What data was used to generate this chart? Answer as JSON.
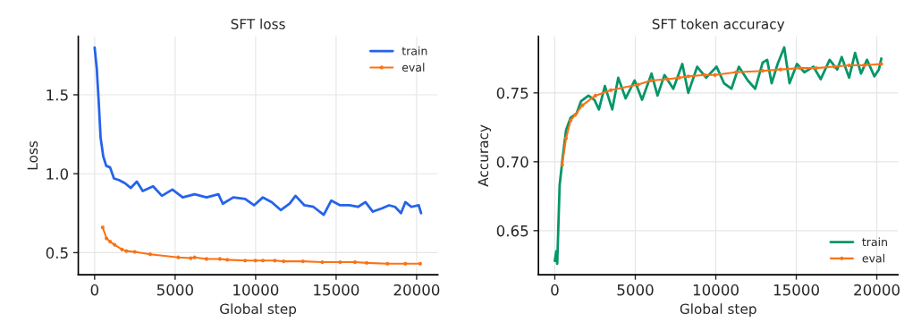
{
  "chart_data": [
    {
      "type": "line",
      "title": "SFT loss",
      "xlabel": "Global step",
      "ylabel": "Loss",
      "xlim": [
        -1015,
        21315
      ],
      "ylim": [
        0.36,
        1.87
      ],
      "xticks": [
        0,
        5000,
        10000,
        15000,
        20000
      ],
      "yticks": [
        {
          "value": 0.5,
          "label": "0.5"
        },
        {
          "value": 1.0,
          "label": "1.0"
        },
        {
          "value": 1.5,
          "label": "1.5"
        }
      ],
      "grid": true,
      "legend": "top right",
      "series": [
        {
          "name": "train",
          "color": "#2563eb",
          "marker": "none",
          "x": [
            0,
            130,
            258,
            370,
            535,
            720,
            960,
            1200,
            1510,
            1880,
            2250,
            2620,
            2990,
            3630,
            4180,
            4830,
            5470,
            6210,
            6950,
            7690,
            7960,
            8610,
            9350,
            9900,
            10450,
            11000,
            11560,
            12110,
            12480,
            13030,
            13590,
            14230,
            14700,
            15250,
            15810,
            16360,
            16820,
            17280,
            17830,
            18290,
            18660,
            19030,
            19300,
            19670,
            20130,
            20280
          ],
          "values": [
            1.8,
            1.67,
            1.45,
            1.23,
            1.11,
            1.05,
            1.04,
            0.97,
            0.96,
            0.94,
            0.91,
            0.95,
            0.89,
            0.92,
            0.86,
            0.9,
            0.85,
            0.87,
            0.85,
            0.87,
            0.81,
            0.85,
            0.84,
            0.8,
            0.85,
            0.82,
            0.77,
            0.81,
            0.86,
            0.8,
            0.79,
            0.74,
            0.83,
            0.8,
            0.8,
            0.79,
            0.82,
            0.76,
            0.78,
            0.8,
            0.79,
            0.75,
            0.82,
            0.79,
            0.8,
            0.75
          ]
        },
        {
          "name": "eval",
          "color": "#f97316",
          "marker": "circle",
          "x": [
            500,
            740,
            960,
            1240,
            1700,
            1970,
            2490,
            3450,
            5200,
            5970,
            6210,
            6950,
            7780,
            8240,
            9350,
            9990,
            10450,
            11190,
            11740,
            12940,
            14140,
            15250,
            16170,
            16900,
            18190,
            19300,
            20220
          ],
          "values": [
            0.66,
            0.59,
            0.57,
            0.55,
            0.52,
            0.51,
            0.505,
            0.49,
            0.47,
            0.465,
            0.47,
            0.46,
            0.46,
            0.455,
            0.45,
            0.45,
            0.45,
            0.45,
            0.445,
            0.445,
            0.44,
            0.44,
            0.44,
            0.435,
            0.43,
            0.43,
            0.43
          ]
        }
      ]
    },
    {
      "type": "line",
      "title": "SFT token accuracy",
      "xlabel": "Global step",
      "ylabel": "Accuracy",
      "xlim": [
        -1015,
        21315
      ],
      "ylim": [
        0.618,
        0.791
      ],
      "xticks": [
        0,
        5000,
        10000,
        15000,
        20000
      ],
      "yticks": [
        {
          "value": 0.65,
          "label": "0.65"
        },
        {
          "value": 0.7,
          "label": "0.70"
        },
        {
          "value": 0.75,
          "label": "0.75"
        }
      ],
      "grid": true,
      "legend": "bottom right",
      "series": [
        {
          "name": "train",
          "color": "#059669",
          "marker": "none",
          "x": [
            0,
            90,
            150,
            300,
            480,
            700,
            980,
            1350,
            1630,
            2090,
            2460,
            2740,
            3110,
            3570,
            3940,
            4400,
            4960,
            5420,
            6010,
            6380,
            6810,
            7360,
            7920,
            8290,
            8840,
            9400,
            10050,
            10510,
            10970,
            11430,
            11990,
            12450,
            12910,
            13190,
            13470,
            13840,
            14250,
            14580,
            15040,
            15500,
            16060,
            16520,
            17070,
            17540,
            17820,
            18280,
            18650,
            19020,
            19390,
            19850,
            20130,
            20280
          ],
          "values": [
            0.628,
            0.635,
            0.626,
            0.683,
            0.702,
            0.723,
            0.732,
            0.735,
            0.744,
            0.748,
            0.745,
            0.738,
            0.755,
            0.738,
            0.761,
            0.746,
            0.759,
            0.745,
            0.764,
            0.748,
            0.763,
            0.753,
            0.771,
            0.75,
            0.769,
            0.761,
            0.769,
            0.757,
            0.753,
            0.769,
            0.759,
            0.753,
            0.772,
            0.774,
            0.757,
            0.771,
            0.783,
            0.757,
            0.771,
            0.765,
            0.769,
            0.76,
            0.774,
            0.767,
            0.776,
            0.761,
            0.779,
            0.764,
            0.774,
            0.762,
            0.767,
            0.775
          ]
        },
        {
          "name": "eval",
          "color": "#f97316",
          "marker": "circle",
          "x": [
            460,
            700,
            980,
            1260,
            1720,
            2520,
            3480,
            5180,
            5980,
            7000,
            7730,
            8290,
            9310,
            9950,
            11250,
            12910,
            14020,
            15230,
            16240,
            17350,
            18280,
            19200,
            20280
          ],
          "values": [
            0.698,
            0.717,
            0.73,
            0.734,
            0.741,
            0.748,
            0.752,
            0.756,
            0.759,
            0.76,
            0.761,
            0.762,
            0.763,
            0.763,
            0.765,
            0.766,
            0.767,
            0.768,
            0.768,
            0.769,
            0.77,
            0.77,
            0.771
          ]
        }
      ]
    }
  ]
}
